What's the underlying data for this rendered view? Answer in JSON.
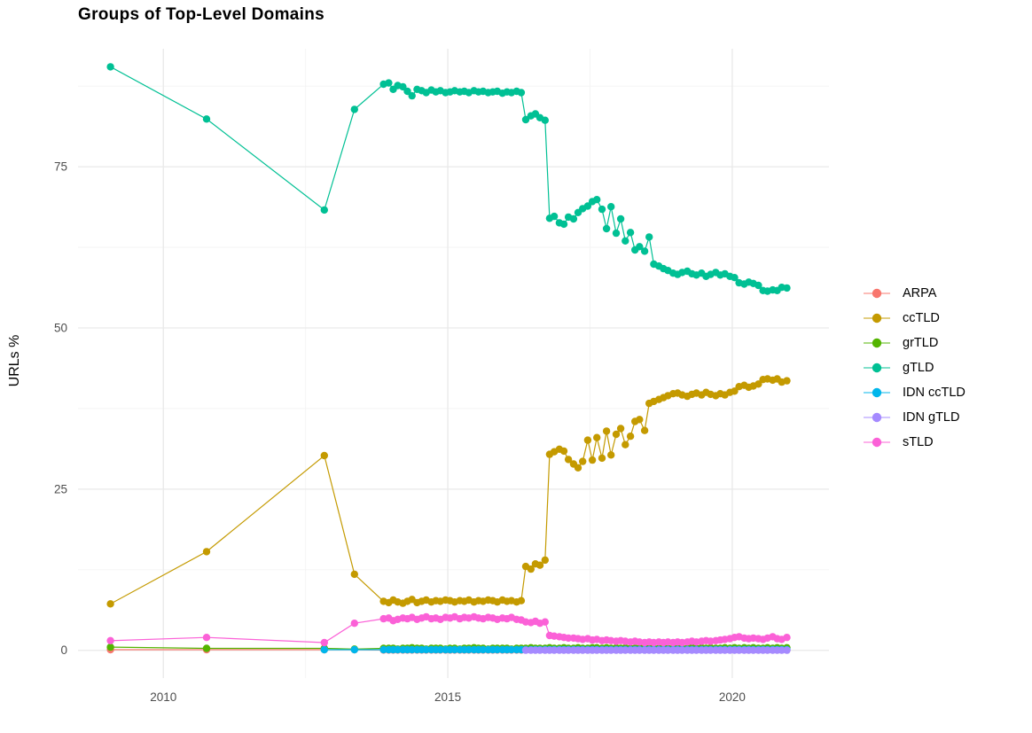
{
  "chart_data": {
    "type": "line",
    "title": "Groups of Top-Level Domains",
    "xlabel": "",
    "ylabel": "URLs %",
    "grid": true,
    "legend_position": "right",
    "x_ticks": [
      2010,
      2015,
      2020
    ],
    "x_minor_ticks": [
      2012.5,
      2017.5
    ],
    "y_ticks": [
      0,
      25,
      50,
      75
    ],
    "y_minor_ticks": [
      12.5,
      37.5,
      62.5,
      87.5
    ],
    "x_range": [
      2008.5,
      2021.7
    ],
    "y_range": [
      -4.3,
      93.3
    ],
    "x_monthly": [
      2013.87,
      2013.96,
      2014.04,
      2014.12,
      2014.21,
      2014.29,
      2014.37,
      2014.46,
      2014.54,
      2014.62,
      2014.71,
      2014.79,
      2014.87,
      2014.96,
      2015.04,
      2015.12,
      2015.21,
      2015.29,
      2015.37,
      2015.46,
      2015.54,
      2015.62,
      2015.71,
      2015.79,
      2015.87,
      2015.96,
      2016.04,
      2016.12,
      2016.21,
      2016.29,
      2016.37,
      2016.46,
      2016.54,
      2016.62,
      2016.71,
      2016.79,
      2016.87,
      2016.96,
      2017.04,
      2017.12,
      2017.21,
      2017.29,
      2017.37,
      2017.46,
      2017.54,
      2017.62,
      2017.71,
      2017.79,
      2017.87,
      2017.96,
      2018.04,
      2018.12,
      2018.21,
      2018.29,
      2018.37,
      2018.46,
      2018.54,
      2018.62,
      2018.71,
      2018.79,
      2018.87,
      2018.96,
      2019.04,
      2019.12,
      2019.21,
      2019.29,
      2019.37,
      2019.46,
      2019.54,
      2019.62,
      2019.71,
      2019.79,
      2019.87,
      2019.96,
      2020.04,
      2020.12,
      2020.21,
      2020.29,
      2020.37,
      2020.46,
      2020.54,
      2020.62,
      2020.71,
      2020.79,
      2020.87,
      2020.96
    ],
    "series": [
      {
        "name": "ARPA",
        "color": "#F8766D",
        "early": [
          [
            2009.07,
            0.1
          ],
          [
            2010.76,
            0.1
          ],
          [
            2012.83,
            0.1
          ],
          [
            2013.36,
            0.1
          ]
        ],
        "monthly": [
          0.05,
          0.05,
          0.05,
          0.05,
          0.05,
          0.05,
          0.05,
          0.05,
          0.05,
          0.05,
          0.05,
          0.05,
          0.05,
          0.05,
          0.05,
          0.05,
          0.05,
          0.05,
          0.05,
          0.05,
          0.05,
          0.05,
          0.05,
          0.05,
          0.05,
          0.05,
          0.05,
          0.05,
          0.05,
          0.05,
          0.05,
          0.05,
          0.05,
          0.05,
          0.05,
          0.05,
          0.05,
          0.05,
          0.05,
          0.05,
          0.05,
          0.05,
          0.05,
          0.05,
          0.05,
          0.05,
          0.05,
          0.05,
          0.05,
          0.05,
          0.05,
          0.05,
          0.05,
          0.05,
          0.05,
          0.05,
          0.05,
          0.05,
          0.05,
          0.05,
          0.05,
          0.05,
          0.05,
          0.05,
          0.05,
          0.05,
          0.05,
          0.05,
          0.05,
          0.05,
          0.05,
          0.05,
          0.05,
          0.05,
          0.05,
          0.05,
          0.05,
          0.05,
          0.05,
          0.05,
          0.05,
          0.05,
          0.05,
          0.05,
          0.05,
          0.05
        ]
      },
      {
        "name": "ccTLD",
        "color": "#C49A00",
        "early": [
          [
            2009.07,
            7.2
          ],
          [
            2010.76,
            15.3
          ],
          [
            2012.83,
            30.2
          ],
          [
            2013.36,
            11.8
          ]
        ],
        "monthly": [
          7.6,
          7.4,
          7.8,
          7.5,
          7.3,
          7.6,
          7.9,
          7.4,
          7.6,
          7.8,
          7.5,
          7.7,
          7.6,
          7.8,
          7.7,
          7.5,
          7.7,
          7.6,
          7.8,
          7.5,
          7.7,
          7.6,
          7.8,
          7.7,
          7.5,
          7.8,
          7.6,
          7.7,
          7.5,
          7.7,
          13.0,
          12.6,
          13.4,
          13.2,
          14.0,
          30.4,
          30.8,
          31.2,
          30.9,
          29.6,
          28.9,
          28.3,
          29.3,
          32.6,
          29.5,
          33.0,
          29.8,
          34.0,
          30.3,
          33.5,
          34.4,
          31.9,
          33.2,
          35.5,
          35.8,
          34.1,
          38.3,
          38.6,
          38.9,
          39.2,
          39.5,
          39.8,
          39.9,
          39.6,
          39.4,
          39.7,
          39.9,
          39.6,
          40.0,
          39.7,
          39.5,
          39.8,
          39.6,
          40.0,
          40.2,
          40.9,
          41.1,
          40.8,
          41.0,
          41.3,
          42.0,
          42.1,
          41.9,
          42.1,
          41.6,
          41.8
        ]
      },
      {
        "name": "grTLD",
        "color": "#53B400",
        "early": [
          [
            2009.07,
            0.5
          ],
          [
            2010.76,
            0.3
          ],
          [
            2012.83,
            0.3
          ],
          [
            2013.36,
            0.2
          ]
        ],
        "monthly": [
          0.3,
          0.3,
          0.3,
          0.2,
          0.3,
          0.3,
          0.4,
          0.3,
          0.3,
          0.2,
          0.3,
          0.3,
          0.3,
          0.2,
          0.3,
          0.3,
          0.2,
          0.3,
          0.3,
          0.4,
          0.3,
          0.3,
          0.2,
          0.3,
          0.3,
          0.3,
          0.3,
          0.2,
          0.3,
          0.3,
          0.3,
          0.4,
          0.3,
          0.3,
          0.3,
          0.4,
          0.3,
          0.3,
          0.4,
          0.3,
          0.3,
          0.4,
          0.3,
          0.3,
          0.4,
          0.4,
          0.3,
          0.4,
          0.3,
          0.4,
          0.3,
          0.4,
          0.3,
          0.3,
          0.4,
          0.3,
          0.4,
          0.3,
          0.3,
          0.4,
          0.3,
          0.3,
          0.4,
          0.3,
          0.3,
          0.4,
          0.3,
          0.4,
          0.3,
          0.4,
          0.3,
          0.3,
          0.4,
          0.3,
          0.4,
          0.3,
          0.4,
          0.3,
          0.4,
          0.3,
          0.3,
          0.4,
          0.3,
          0.4,
          0.3,
          0.4
        ]
      },
      {
        "name": "gTLD",
        "color": "#00C094",
        "early": [
          [
            2009.07,
            90.5
          ],
          [
            2010.76,
            82.4
          ],
          [
            2012.83,
            68.3
          ],
          [
            2013.36,
            83.9
          ]
        ],
        "monthly": [
          87.8,
          88.0,
          87.0,
          87.6,
          87.4,
          86.7,
          86.0,
          87.0,
          86.8,
          86.5,
          86.9,
          86.6,
          86.8,
          86.5,
          86.6,
          86.8,
          86.6,
          86.7,
          86.5,
          86.8,
          86.6,
          86.7,
          86.5,
          86.6,
          86.7,
          86.4,
          86.6,
          86.5,
          86.7,
          86.5,
          82.3,
          82.9,
          83.2,
          82.6,
          82.2,
          67.0,
          67.3,
          66.3,
          66.1,
          67.2,
          66.9,
          67.9,
          68.5,
          68.9,
          69.6,
          69.9,
          68.4,
          65.4,
          68.8,
          64.7,
          66.9,
          63.5,
          64.8,
          62.1,
          62.6,
          61.9,
          64.1,
          59.9,
          59.6,
          59.2,
          58.9,
          58.5,
          58.3,
          58.6,
          58.8,
          58.4,
          58.2,
          58.5,
          58.0,
          58.3,
          58.6,
          58.2,
          58.4,
          58.0,
          57.8,
          57.0,
          56.8,
          57.1,
          56.9,
          56.6,
          55.8,
          55.7,
          55.9,
          55.8,
          56.3,
          56.2
        ]
      },
      {
        "name": "IDN ccTLD",
        "color": "#00B6EB",
        "early": [
          [
            2012.83,
            0.1
          ],
          [
            2013.36,
            0.1
          ]
        ],
        "monthly": [
          0.1,
          0.1,
          0.1,
          0.1,
          0.1,
          0.1,
          0.1,
          0.1,
          0.1,
          0.1,
          0.1,
          0.1,
          0.1,
          0.1,
          0.1,
          0.1,
          0.1,
          0.1,
          0.1,
          0.1,
          0.1,
          0.1,
          0.1,
          0.1,
          0.1,
          0.1,
          0.1,
          0.1,
          0.1,
          0.1,
          0.1,
          0.1,
          0.1,
          0.1,
          0.1,
          0.1,
          0.1,
          0.1,
          0.1,
          0.1,
          0.1,
          0.1,
          0.1,
          0.1,
          0.1,
          0.1,
          0.1,
          0.1,
          0.1,
          0.1,
          0.1,
          0.1,
          0.1,
          0.1,
          0.1,
          0.1,
          0.1,
          0.1,
          0.1,
          0.1,
          0.1,
          0.1,
          0.1,
          0.1,
          0.1,
          0.1,
          0.1,
          0.1,
          0.1,
          0.1,
          0.1,
          0.1,
          0.1,
          0.1,
          0.1,
          0.1,
          0.1,
          0.1,
          0.1,
          0.1,
          0.1,
          0.1,
          0.1,
          0.1,
          0.1,
          0.1
        ]
      },
      {
        "name": "IDN gTLD",
        "color": "#A58AFF",
        "early": [],
        "monthly": [
          null,
          null,
          null,
          null,
          null,
          null,
          null,
          null,
          null,
          null,
          null,
          null,
          null,
          null,
          null,
          null,
          null,
          null,
          null,
          null,
          null,
          null,
          null,
          null,
          null,
          null,
          null,
          null,
          null,
          null,
          0.02,
          0.02,
          0.02,
          0.02,
          0.02,
          0.02,
          0.02,
          0.02,
          0.02,
          0.02,
          0.02,
          0.02,
          0.02,
          0.02,
          0.02,
          0.02,
          0.02,
          0.02,
          0.02,
          0.02,
          0.02,
          0.02,
          0.02,
          0.02,
          0.02,
          0.02,
          0.02,
          0.02,
          0.02,
          0.02,
          0.02,
          0.02,
          0.02,
          0.02,
          0.02,
          0.02,
          0.02,
          0.02,
          0.02,
          0.02,
          0.02,
          0.02,
          0.02,
          0.02,
          0.02,
          0.02,
          0.02,
          0.02,
          0.02,
          0.02,
          0.02,
          0.02,
          0.02,
          0.02,
          0.02,
          0.02
        ]
      },
      {
        "name": "sTLD",
        "color": "#FB61D7",
        "early": [
          [
            2009.07,
            1.5
          ],
          [
            2010.76,
            2.0
          ],
          [
            2012.83,
            1.2
          ],
          [
            2013.36,
            4.2
          ]
        ],
        "monthly": [
          4.9,
          5.0,
          4.6,
          4.8,
          5.0,
          4.9,
          5.1,
          4.8,
          5.0,
          5.2,
          4.9,
          5.0,
          4.8,
          5.1,
          5.0,
          5.2,
          4.9,
          5.1,
          5.0,
          5.2,
          5.0,
          4.9,
          5.1,
          5.0,
          4.8,
          5.0,
          4.9,
          5.1,
          4.8,
          4.7,
          4.4,
          4.3,
          4.5,
          4.2,
          4.4,
          2.3,
          2.2,
          2.1,
          2.0,
          1.9,
          1.9,
          1.8,
          1.7,
          1.8,
          1.6,
          1.7,
          1.5,
          1.6,
          1.5,
          1.4,
          1.5,
          1.4,
          1.3,
          1.4,
          1.3,
          1.2,
          1.3,
          1.2,
          1.3,
          1.2,
          1.3,
          1.2,
          1.3,
          1.2,
          1.3,
          1.4,
          1.3,
          1.4,
          1.5,
          1.4,
          1.5,
          1.6,
          1.7,
          1.8,
          2.0,
          2.1,
          1.9,
          1.8,
          1.9,
          1.8,
          1.7,
          1.9,
          2.1,
          1.8,
          1.7,
          2.0
        ]
      }
    ],
    "colors": {
      "major_grid": "#e9e9e9",
      "minor_grid": "#f3f3f3",
      "axis_text": "#4d4d4d",
      "background": "#ffffff"
    }
  }
}
